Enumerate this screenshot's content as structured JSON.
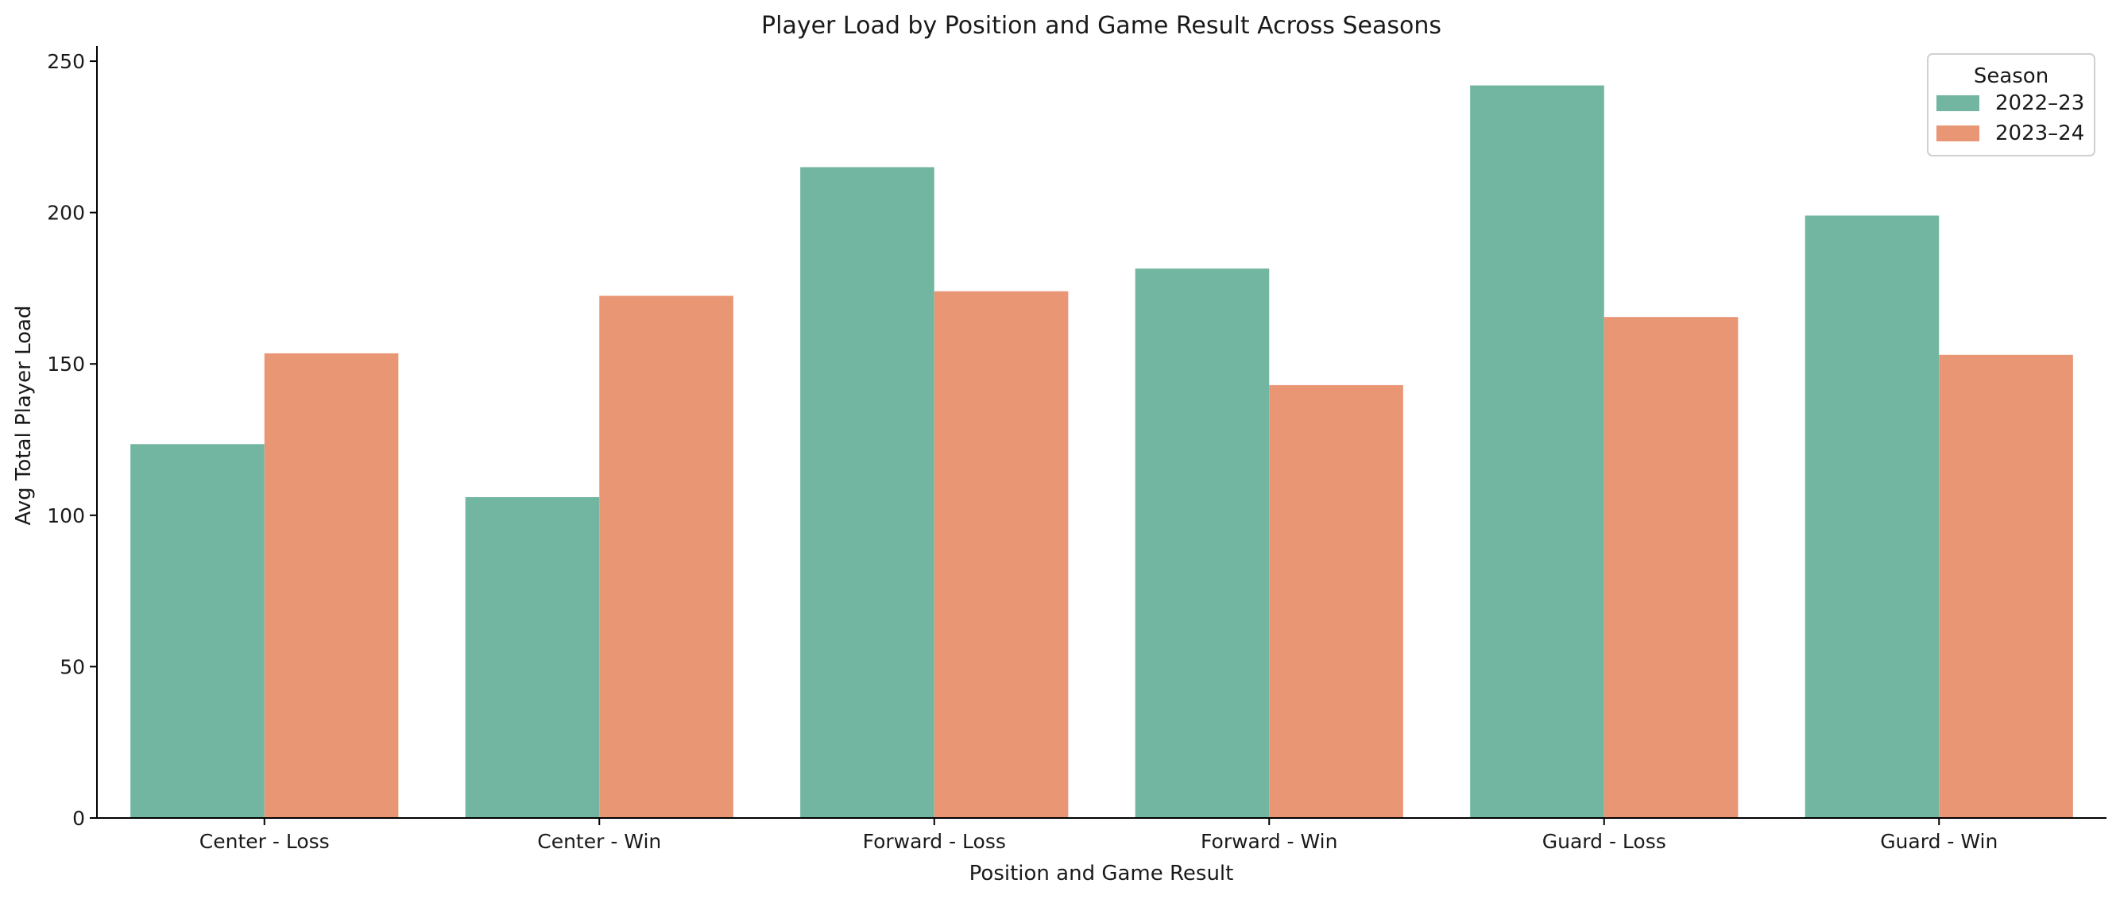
{
  "chart_data": {
    "type": "bar",
    "title": "Player Load by Position and Game Result Across Seasons",
    "xlabel": "Position and Game Result",
    "ylabel": "Avg Total Player Load",
    "categories": [
      "Center - Loss",
      "Center - Win",
      "Forward - Loss",
      "Forward - Win",
      "Guard - Loss",
      "Guard - Win"
    ],
    "series": [
      {
        "name": "2022–23",
        "color": "#72b6a1",
        "values": [
          123.5,
          106,
          215,
          181.5,
          242,
          199
        ]
      },
      {
        "name": "2023–24",
        "color": "#e99675",
        "values": [
          153.5,
          172.5,
          174,
          143,
          165.5,
          153
        ]
      }
    ],
    "ylim": [
      0,
      255
    ],
    "yticks": [
      0,
      50,
      100,
      150,
      200,
      250
    ],
    "grid": false,
    "legend": {
      "title": "Season",
      "placement": "top-right"
    }
  }
}
